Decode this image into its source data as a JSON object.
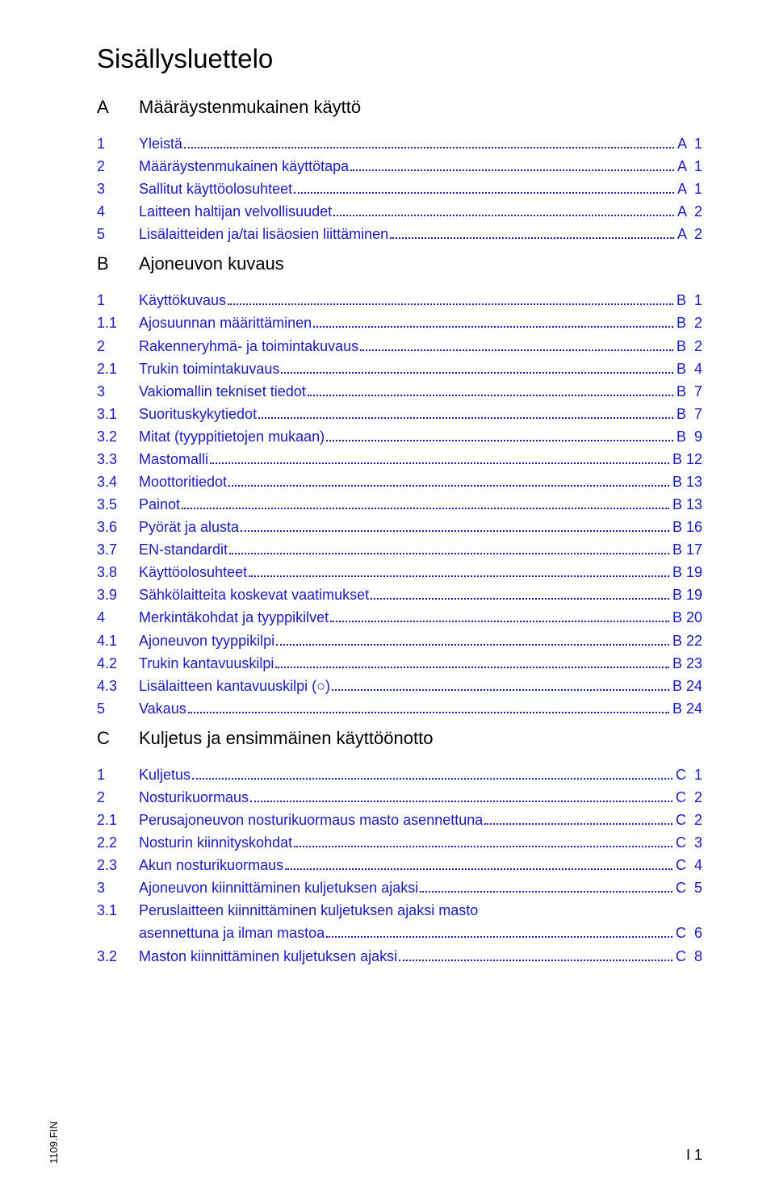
{
  "page": {
    "title": "Sisällysluettelo",
    "footer_code": "1109.FIN",
    "footer_page": "I 1",
    "link_color": "#1a1ac8",
    "text_color": "#000000",
    "background": "#ffffff"
  },
  "sections": [
    {
      "letter": "A",
      "title": "Määräystenmukainen käyttö",
      "items": [
        {
          "num": "1",
          "label": "Yleistä",
          "page": "A  1"
        },
        {
          "num": "2",
          "label": "Määräystenmukainen käyttötapa",
          "page": "A  1"
        },
        {
          "num": "3",
          "label": "Sallitut käyttöolosuhteet",
          "page": "A  1"
        },
        {
          "num": "4",
          "label": "Laitteen haltijan velvollisuudet",
          "page": "A  2"
        },
        {
          "num": "5",
          "label": "Lisälaitteiden ja/tai lisäosien liittäminen",
          "page": "A  2"
        }
      ]
    },
    {
      "letter": "B",
      "title": "Ajoneuvon kuvaus",
      "items": [
        {
          "num": "1",
          "label": "Käyttökuvaus",
          "page": "B  1"
        },
        {
          "num": "1.1",
          "label": "Ajosuunnan määrittäminen",
          "page": "B  2"
        },
        {
          "num": "2",
          "label": "Rakenneryhmä- ja toimintakuvaus",
          "page": "B  2"
        },
        {
          "num": "2.1",
          "label": "Trukin toimintakuvaus",
          "page": "B  4"
        },
        {
          "num": "3",
          "label": "Vakiomallin tekniset tiedot",
          "page": "B  7"
        },
        {
          "num": "3.1",
          "label": "Suorituskykytiedot",
          "page": "B  7"
        },
        {
          "num": "3.2",
          "label": "Mitat (tyyppitietojen mukaan)",
          "page": "B  9"
        },
        {
          "num": "3.3",
          "label": "Mastomalli",
          "page": "B 12"
        },
        {
          "num": "3.4",
          "label": "Moottoritiedot",
          "page": "B 13"
        },
        {
          "num": "3.5",
          "label": "Painot",
          "page": "B 13"
        },
        {
          "num": "3.6",
          "label": "Pyörät ja alusta",
          "page": "B 16"
        },
        {
          "num": "3.7",
          "label": "EN-standardit",
          "page": "B 17"
        },
        {
          "num": "3.8",
          "label": "Käyttöolosuhteet",
          "page": "B 19"
        },
        {
          "num": "3.9",
          "label": "Sähkölaitteita koskevat vaatimukset",
          "page": "B 19"
        },
        {
          "num": "4",
          "label": "Merkintäkohdat ja tyyppikilvet",
          "page": "B 20"
        },
        {
          "num": "4.1",
          "label": "Ajoneuvon tyyppikilpi",
          "page": "B 22"
        },
        {
          "num": "4.2",
          "label": "Trukin kantavuuskilpi",
          "page": "B 23"
        },
        {
          "num": "4.3",
          "label": "Lisälaitteen kantavuuskilpi (○)",
          "page": "B 24"
        },
        {
          "num": "5",
          "label": "Vakaus",
          "page": "B 24"
        }
      ]
    },
    {
      "letter": "C",
      "title": "Kuljetus ja ensimmäinen käyttöönotto",
      "items": [
        {
          "num": "1",
          "label": "Kuljetus",
          "page": "C  1"
        },
        {
          "num": "2",
          "label": "Nosturikuormaus",
          "page": "C  2"
        },
        {
          "num": "2.1",
          "label": "Perusajoneuvon nosturikuormaus masto asennettuna",
          "page": "C  2"
        },
        {
          "num": "2.2",
          "label": "Nosturin kiinnityskohdat",
          "page": "C  3"
        },
        {
          "num": "2.3",
          "label": "Akun nosturikuormaus",
          "page": "C  4"
        },
        {
          "num": "3",
          "label": "Ajoneuvon kiinnittäminen kuljetuksen ajaksi",
          "page": "C  5"
        },
        {
          "num": "3.1",
          "label": "Peruslaitteen kiinnittäminen kuljetuksen ajaksi masto",
          "label2": "asennettuna ja ilman mastoa",
          "page": "C  6",
          "multiline": true
        },
        {
          "num": "3.2",
          "label": "Maston kiinnittäminen kuljetuksen ajaksi",
          "page": "C  8"
        }
      ]
    }
  ]
}
